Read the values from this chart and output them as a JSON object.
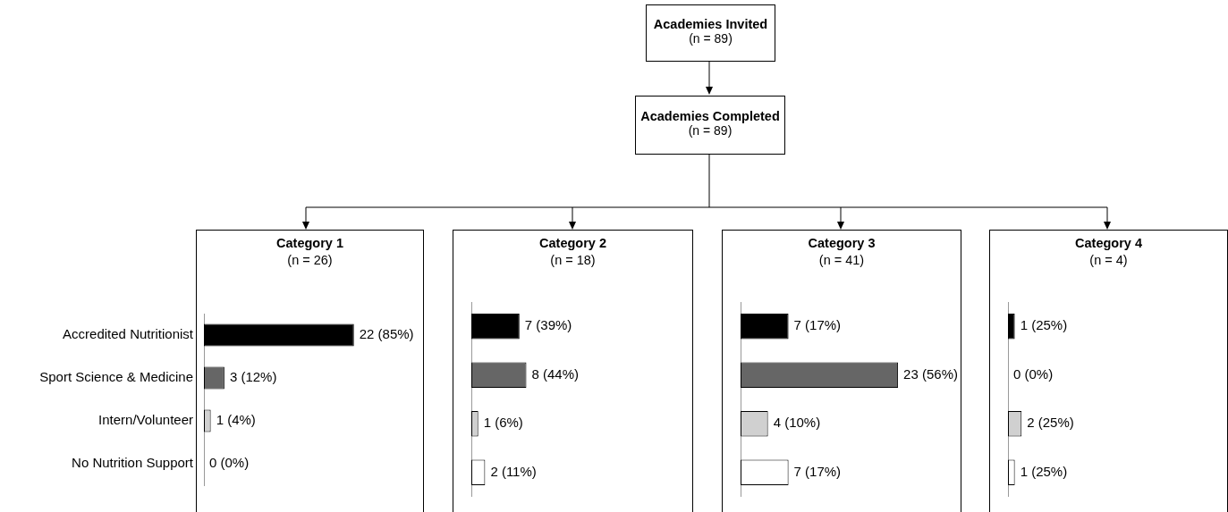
{
  "chart_data": [
    {
      "type": "other",
      "annotations": [
        "Academies Invited",
        "(n = 89)",
        "Academies Completed",
        "(n = 89)"
      ]
    },
    {
      "type": "bar",
      "orientation": "horizontal",
      "title": "Category 1",
      "subtitle": "(n = 26)",
      "categories": [
        "Accredited Nutritionist",
        "Sport Science & Medicine",
        "Intern/Volunteer",
        "No Nutrition Support"
      ],
      "values": [
        22,
        3,
        1,
        0
      ],
      "colors": [
        "#000000",
        "#666666",
        "#d0d0d0",
        "#ffffff"
      ],
      "value_labels": [
        "22 (85%)",
        "3 (12%)",
        "1 (4%)",
        "0 (0%)"
      ],
      "xlim": [
        0,
        32
      ],
      "tick_labels": "y"
    },
    {
      "type": "bar",
      "orientation": "horizontal",
      "title": "Category 2",
      "subtitle": "(n = 18)",
      "categories": [
        null,
        null,
        null,
        null
      ],
      "values": [
        7,
        8,
        1,
        2
      ],
      "colors": [
        "#000000",
        "#666666",
        "#d0d0d0",
        "#ffffff"
      ],
      "value_labels": [
        "7 (39%)",
        "8 (44%)",
        "1 (6%)",
        "2 (11%)"
      ],
      "xlim": [
        0,
        32
      ],
      "tick_labels": false
    },
    {
      "type": "bar",
      "orientation": "horizontal",
      "title": "Category 3",
      "subtitle": "(n = 41)",
      "categories": [
        null,
        null,
        null,
        null
      ],
      "values": [
        7,
        23,
        4,
        7
      ],
      "colors": [
        "#000000",
        "#666666",
        "#d0d0d0",
        "#ffffff"
      ],
      "value_labels": [
        "7 (17%)",
        "23 (56%)",
        "4 (10%)",
        "7 (17%)"
      ],
      "xlim": [
        0,
        32
      ],
      "tick_labels": false
    },
    {
      "type": "bar",
      "orientation": "horizontal",
      "title": "Category 4",
      "subtitle": "(n = 4)",
      "categories": [
        null,
        null,
        null,
        null
      ],
      "values": [
        1,
        0,
        2,
        1
      ],
      "colors": [
        "#000000",
        "#666666",
        "#d0d0d0",
        "#ffffff"
      ],
      "value_labels": [
        "1 (25%)",
        "0 (0%)",
        "2 (25%)",
        "1 (25%)"
      ],
      "xlim": [
        0,
        32
      ],
      "tick_labels": false
    }
  ]
}
